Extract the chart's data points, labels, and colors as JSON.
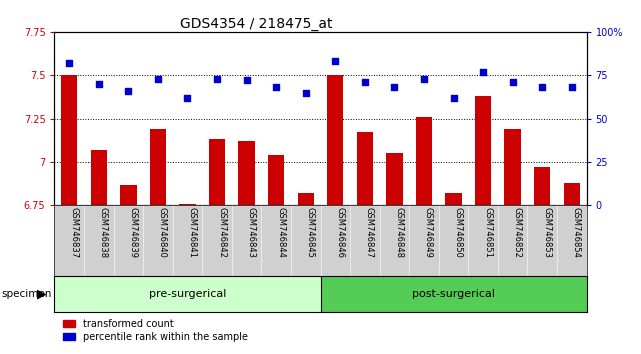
{
  "title": "GDS4354 / 218475_at",
  "categories": [
    "GSM746837",
    "GSM746838",
    "GSM746839",
    "GSM746840",
    "GSM746841",
    "GSM746842",
    "GSM746843",
    "GSM746844",
    "GSM746845",
    "GSM746846",
    "GSM746847",
    "GSM746848",
    "GSM746849",
    "GSM746850",
    "GSM746851",
    "GSM746852",
    "GSM746853",
    "GSM746854"
  ],
  "bar_values": [
    7.5,
    7.07,
    6.87,
    7.19,
    6.76,
    7.13,
    7.12,
    7.04,
    6.82,
    7.5,
    7.17,
    7.05,
    7.26,
    6.82,
    7.38,
    7.19,
    6.97,
    6.88
  ],
  "dot_values": [
    82,
    70,
    66,
    73,
    62,
    73,
    72,
    68,
    65,
    83,
    71,
    68,
    73,
    62,
    77,
    71,
    68,
    68
  ],
  "ylim_left": [
    6.75,
    7.75
  ],
  "ylim_right": [
    0,
    100
  ],
  "yticks_left": [
    6.75,
    7.0,
    7.25,
    7.5,
    7.75
  ],
  "yticks_right": [
    0,
    25,
    50,
    75,
    100
  ],
  "ytick_labels_left": [
    "6.75",
    "7",
    "7.25",
    "7.5",
    "7.75"
  ],
  "ytick_labels_right": [
    "0",
    "25",
    "50",
    "75",
    "100%"
  ],
  "bar_color": "#cc0000",
  "dot_color": "#0000cc",
  "pre_surgical_count": 9,
  "post_surgical_count": 9,
  "pre_label": "pre-surgerical",
  "post_label": "post-surgerical",
  "specimen_label": "specimen",
  "legend_bar_label": "transformed count",
  "legend_dot_label": "percentile rank within the sample",
  "pre_color": "#ccffcc",
  "post_color": "#55cc55",
  "tick_area_color": "#d0d0d0",
  "title_fontsize": 10,
  "tick_fontsize": 7,
  "cat_fontsize": 6,
  "group_fontsize": 8,
  "legend_fontsize": 7
}
